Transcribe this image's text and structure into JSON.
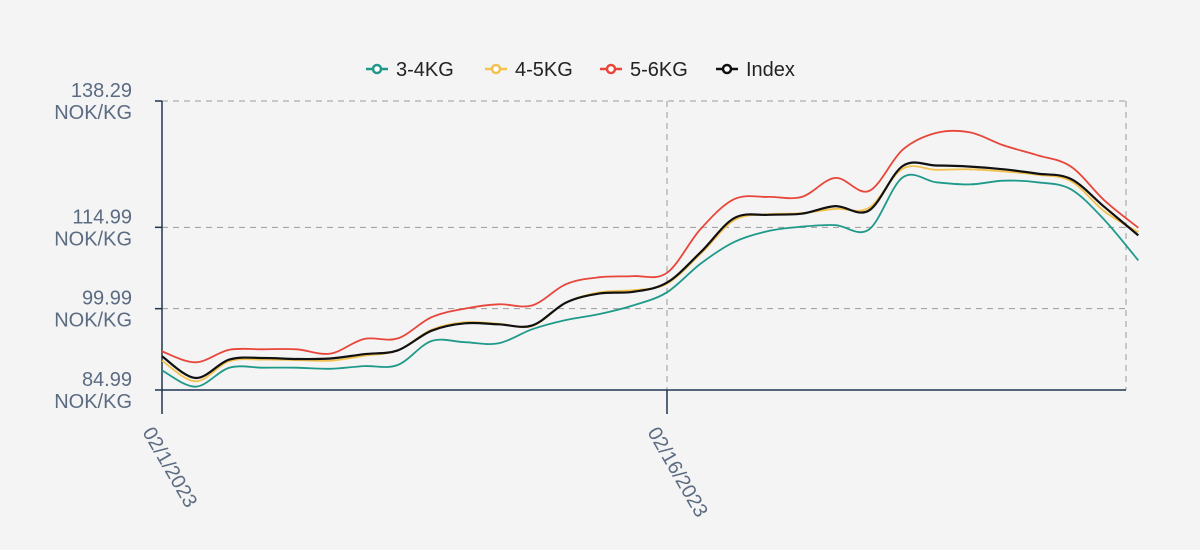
{
  "chart_data": {
    "type": "line",
    "title": "",
    "xlabel": "",
    "ylabel": "",
    "x_dates": [
      "2023-02-01",
      "2023-02-02",
      "2023-02-03",
      "2023-02-04",
      "2023-02-05",
      "2023-02-06",
      "2023-02-07",
      "2023-02-08",
      "2023-02-09",
      "2023-02-10",
      "2023-02-11",
      "2023-02-12",
      "2023-02-13",
      "2023-02-14",
      "2023-02-15",
      "2023-02-16",
      "2023-02-17",
      "2023-02-18",
      "2023-02-19",
      "2023-02-20",
      "2023-02-21",
      "2023-02-22",
      "2023-02-23",
      "2023-02-24",
      "2023-02-25",
      "2023-02-26",
      "2023-02-27",
      "2023-02-28",
      "2023-03-01",
      "2023-03-02"
    ],
    "x_ticks": [
      {
        "value": "2023-02-01",
        "label": "02/1/2023"
      },
      {
        "value": "2023-02-16",
        "label": "02/16/2023"
      }
    ],
    "y_ticks": [
      {
        "value": 84.99,
        "line1": "84.99",
        "line2": "NOK/KG"
      },
      {
        "value": 99.99,
        "line1": "99.99",
        "line2": "NOK/KG"
      },
      {
        "value": 114.99,
        "line1": "114.99",
        "line2": "NOK/KG"
      },
      {
        "value": 138.29,
        "line1": "138.29",
        "line2": "NOK/KG"
      }
    ],
    "ylim": [
      84.99,
      138.29
    ],
    "grid": true,
    "legend_position": "top-center",
    "series": [
      {
        "name": "3-4KG",
        "color": "#1f9a8a",
        "values": [
          88.6,
          85.6,
          89.1,
          89.1,
          89.1,
          88.9,
          89.4,
          89.6,
          94.0,
          93.8,
          93.6,
          96.2,
          97.9,
          99.0,
          100.6,
          103.0,
          108.3,
          112.3,
          114.3,
          115.1,
          115.4,
          114.6,
          124.2,
          123.3,
          122.9,
          123.6,
          123.3,
          122.0,
          116.3,
          108.9
        ]
      },
      {
        "name": "4-5KG",
        "color": "#f2c14e",
        "values": [
          90.4,
          86.6,
          90.3,
          90.6,
          90.5,
          90.4,
          91.3,
          92.3,
          96.1,
          97.5,
          97.2,
          96.8,
          101.1,
          103.0,
          103.4,
          104.6,
          110.1,
          116.3,
          117.4,
          117.6,
          118.4,
          118.6,
          125.8,
          125.6,
          125.7,
          125.3,
          124.7,
          123.5,
          117.9,
          114.1
        ]
      },
      {
        "name": "5-6KG",
        "color": "#e8463a",
        "values": [
          92.1,
          90.1,
          92.4,
          92.5,
          92.5,
          91.7,
          94.4,
          94.5,
          98.4,
          100.0,
          100.8,
          100.6,
          104.5,
          105.8,
          106.0,
          106.6,
          114.7,
          120.2,
          120.6,
          120.6,
          124.1,
          121.7,
          129.3,
          132.4,
          132.5,
          130.1,
          128.3,
          126.2,
          119.9,
          114.9
        ]
      },
      {
        "name": "Index",
        "color": "#111111",
        "values": [
          91.2,
          87.2,
          90.6,
          90.9,
          90.7,
          90.8,
          91.6,
          92.3,
          95.9,
          97.3,
          97.1,
          96.9,
          101.1,
          102.8,
          103.1,
          104.8,
          110.4,
          116.7,
          117.3,
          117.5,
          118.9,
          118.1,
          126.3,
          126.4,
          126.2,
          125.7,
          124.9,
          123.9,
          118.7,
          113.5
        ]
      }
    ]
  }
}
